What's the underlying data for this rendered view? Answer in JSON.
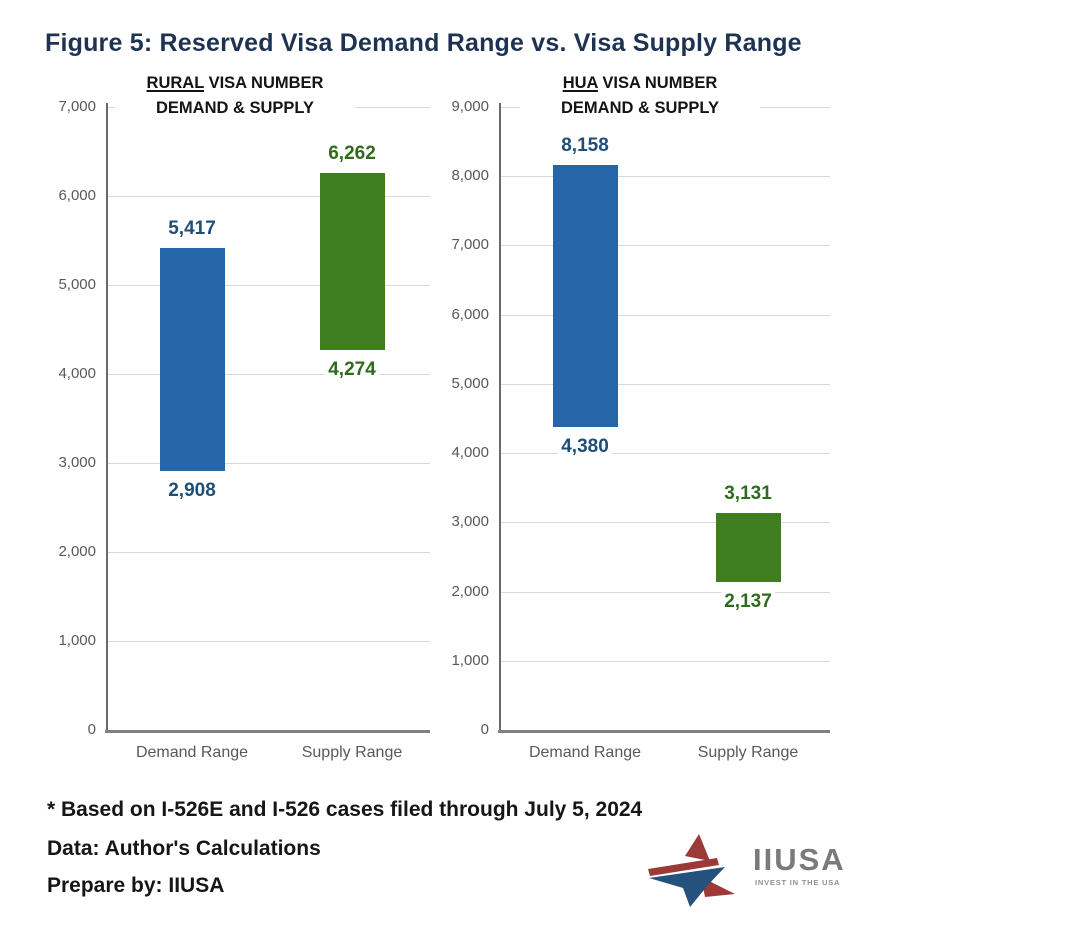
{
  "page_title": "Figure 5: Reserved Visa Demand Range vs. Visa Supply Range",
  "footer": {
    "note": "* Based on I-526E and I-526 cases filed through July 5, 2024",
    "data_source": "Data: Author's Calculations",
    "prepared_by": "Prepare by: IIUSA"
  },
  "logo": {
    "name": "IIUSA",
    "tagline": "INVEST IN THE USA",
    "navy": "#24527D",
    "red": "#9C3A38",
    "text_gray": "#7A7A7A"
  },
  "colors": {
    "title_navy": "#1E3252",
    "demand_bar": "#2566A8",
    "demand_label": "#1F4E79",
    "supply_bar": "#3E7D20",
    "supply_label": "#2E6B1E",
    "gridline": "#D9D9D9",
    "axis_gray": "#6A6A6A",
    "tick_text": "#595959"
  },
  "chart_data": [
    {
      "type": "bar",
      "subtype": "floating_range",
      "title_line1_underlined": "RURAL",
      "title_line1_rest": "VISA NUMBER",
      "title_line2": "DEMAND & SUPPLY",
      "categories": [
        "Demand Range",
        "Supply Range"
      ],
      "series": [
        {
          "name": "Demand Range",
          "role": "demand",
          "low": 2908,
          "high": 5417
        },
        {
          "name": "Supply Range",
          "role": "supply",
          "low": 4274,
          "high": 6262
        }
      ],
      "ylim": [
        0,
        7000
      ],
      "ytick_interval": 1000,
      "grid": true,
      "legend": "none"
    },
    {
      "type": "bar",
      "subtype": "floating_range",
      "title_line1_underlined": "HUA",
      "title_line1_rest": "VISA NUMBER",
      "title_line2": "DEMAND & SUPPLY",
      "categories": [
        "Demand Range",
        "Supply Range"
      ],
      "series": [
        {
          "name": "Demand Range",
          "role": "demand",
          "low": 4380,
          "high": 8158
        },
        {
          "name": "Supply Range",
          "role": "supply",
          "low": 2137,
          "high": 3131
        }
      ],
      "ylim": [
        0,
        9000
      ],
      "ytick_interval": 1000,
      "grid": true,
      "legend": "none"
    }
  ]
}
